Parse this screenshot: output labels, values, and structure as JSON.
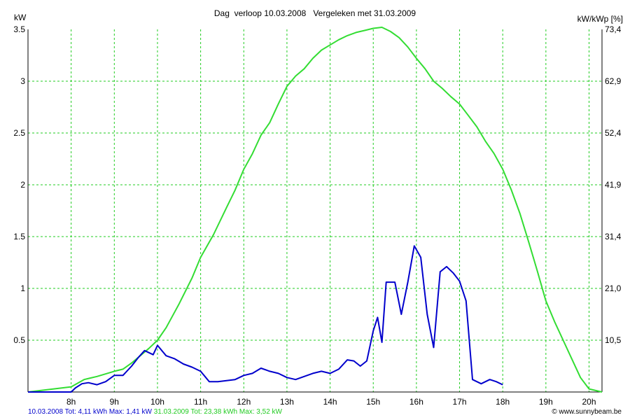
{
  "header": {
    "title": "Dag  verloop 10.03.2008   Vergeleken met 31.03.2009",
    "left_unit": "kW",
    "right_unit": "kW/kWp [%]"
  },
  "footer": {
    "series1_summary": "10.03.2008 Tot: 4,11 kWh Max: 1,41 kW",
    "series2_summary": "31.03.2009 Tot: 23,38 kWh Max: 3,52 kW",
    "credit": "© www.sunnybeam.be"
  },
  "colors": {
    "series1": "#0000cc",
    "series2": "#33dd33",
    "grid": "#22cc22",
    "axis": "#000000"
  },
  "chart_data": {
    "type": "line",
    "title": "Dag  verloop 10.03.2008   Vergeleken met 31.03.2009",
    "ylabel": "kW",
    "y2label": "kW/kWp [%]",
    "xlim": [
      7.0,
      20.3
    ],
    "ylim": [
      0,
      3.5
    ],
    "grid": true,
    "x_ticks": [
      8,
      9,
      10,
      11,
      12,
      13,
      14,
      15,
      16,
      17,
      18,
      19,
      20
    ],
    "x_tick_labels": [
      "8h",
      "9h",
      "10h",
      "11h",
      "12h",
      "13h",
      "14h",
      "15h",
      "16h",
      "17h",
      "18h",
      "19h",
      "20h"
    ],
    "y_ticks": [
      0.5,
      1,
      1.5,
      2,
      2.5,
      3,
      3.5
    ],
    "y_tick_labels": [
      "0.5",
      "1",
      "1.5",
      "2",
      "2.5",
      "3",
      "3.5"
    ],
    "y2_tick_labels": [
      "10,5",
      "21,0",
      "31,4",
      "41,9",
      "52,4",
      "62,9",
      "73,4"
    ],
    "series": [
      {
        "name": "10.03.2008",
        "x": [
          7.0,
          8.0,
          8.1,
          8.25,
          8.4,
          8.6,
          8.8,
          9.0,
          9.2,
          9.4,
          9.55,
          9.7,
          9.9,
          10.0,
          10.2,
          10.4,
          10.6,
          10.8,
          11.0,
          11.2,
          11.4,
          11.6,
          11.8,
          12.0,
          12.2,
          12.4,
          12.6,
          12.8,
          13.0,
          13.2,
          13.4,
          13.6,
          13.8,
          14.0,
          14.2,
          14.4,
          14.55,
          14.7,
          14.85,
          15.0,
          15.1,
          15.2,
          15.3,
          15.5,
          15.65,
          15.8,
          15.95,
          16.1,
          16.25,
          16.4,
          16.55,
          16.7,
          16.85,
          17.0,
          17.15,
          17.3,
          17.5,
          17.7,
          17.85,
          18.0
        ],
        "values": [
          0.0,
          0.0,
          0.04,
          0.08,
          0.09,
          0.07,
          0.1,
          0.16,
          0.16,
          0.25,
          0.33,
          0.4,
          0.36,
          0.45,
          0.35,
          0.32,
          0.27,
          0.24,
          0.2,
          0.1,
          0.1,
          0.11,
          0.12,
          0.16,
          0.18,
          0.23,
          0.2,
          0.18,
          0.14,
          0.12,
          0.15,
          0.18,
          0.2,
          0.18,
          0.22,
          0.31,
          0.3,
          0.25,
          0.3,
          0.59,
          0.72,
          0.48,
          1.06,
          1.06,
          0.75,
          1.06,
          1.41,
          1.3,
          0.75,
          0.43,
          1.16,
          1.21,
          1.15,
          1.07,
          0.88,
          0.12,
          0.08,
          0.12,
          0.1,
          0.07
        ]
      },
      {
        "name": "31.03.2009",
        "x": [
          7.0,
          8.0,
          8.3,
          8.6,
          9.0,
          9.2,
          9.4,
          9.6,
          9.8,
          10.0,
          10.2,
          10.5,
          10.8,
          11.0,
          11.3,
          11.6,
          11.8,
          12.0,
          12.2,
          12.4,
          12.6,
          12.8,
          13.0,
          13.2,
          13.4,
          13.6,
          13.8,
          14.0,
          14.2,
          14.4,
          14.6,
          14.8,
          15.0,
          15.2,
          15.4,
          15.6,
          15.8,
          16.0,
          16.2,
          16.4,
          16.6,
          16.8,
          17.0,
          17.2,
          17.4,
          17.6,
          17.8,
          18.0,
          18.2,
          18.4,
          18.6,
          18.8,
          19.0,
          19.2,
          19.4,
          19.6,
          19.8,
          20.0,
          20.3
        ],
        "values": [
          0.0,
          0.05,
          0.12,
          0.15,
          0.2,
          0.22,
          0.28,
          0.35,
          0.42,
          0.5,
          0.62,
          0.85,
          1.1,
          1.3,
          1.52,
          1.78,
          1.95,
          2.15,
          2.3,
          2.48,
          2.6,
          2.78,
          2.95,
          3.05,
          3.12,
          3.22,
          3.3,
          3.35,
          3.4,
          3.44,
          3.47,
          3.49,
          3.51,
          3.52,
          3.48,
          3.42,
          3.33,
          3.22,
          3.12,
          3.0,
          2.93,
          2.85,
          2.78,
          2.67,
          2.56,
          2.42,
          2.3,
          2.15,
          1.95,
          1.72,
          1.45,
          1.17,
          0.88,
          0.68,
          0.5,
          0.32,
          0.14,
          0.03,
          0.0
        ]
      }
    ]
  }
}
